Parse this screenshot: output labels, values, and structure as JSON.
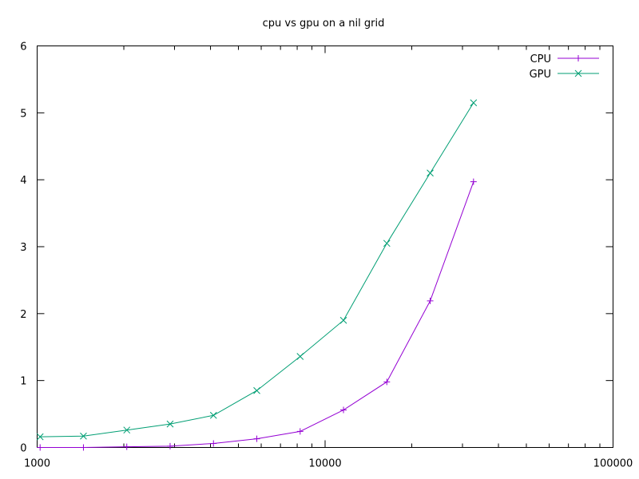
{
  "chart_data": {
    "type": "line",
    "title": "cpu vs gpu on a nil grid",
    "xlabel": "",
    "ylabel": "",
    "xscale": "log",
    "xlim": [
      1000,
      100000
    ],
    "ylim": [
      0,
      6
    ],
    "x_ticks": [
      1000,
      10000,
      100000
    ],
    "x_tick_labels": [
      "1000",
      "10000",
      "100000"
    ],
    "y_ticks": [
      0,
      1,
      2,
      3,
      4,
      5,
      6
    ],
    "y_tick_labels": [
      "0",
      "1",
      "2",
      "3",
      "4",
      "5",
      "6"
    ],
    "grid": false,
    "legend_position": "top-right",
    "x": [
      1024,
      1448,
      2048,
      2896,
      4096,
      5793,
      8192,
      11585,
      16384,
      23170,
      32768
    ],
    "series": [
      {
        "name": "CPU",
        "color": "#9400d3",
        "marker": "plus",
        "values": [
          0.0,
          0.0,
          0.01,
          0.02,
          0.06,
          0.13,
          0.24,
          0.56,
          0.98,
          2.19,
          3.97
        ]
      },
      {
        "name": "GPU",
        "color": "#009e73",
        "marker": "x",
        "values": [
          0.16,
          0.17,
          0.26,
          0.35,
          0.48,
          0.85,
          1.36,
          1.9,
          3.05,
          4.1,
          5.15
        ]
      }
    ]
  }
}
